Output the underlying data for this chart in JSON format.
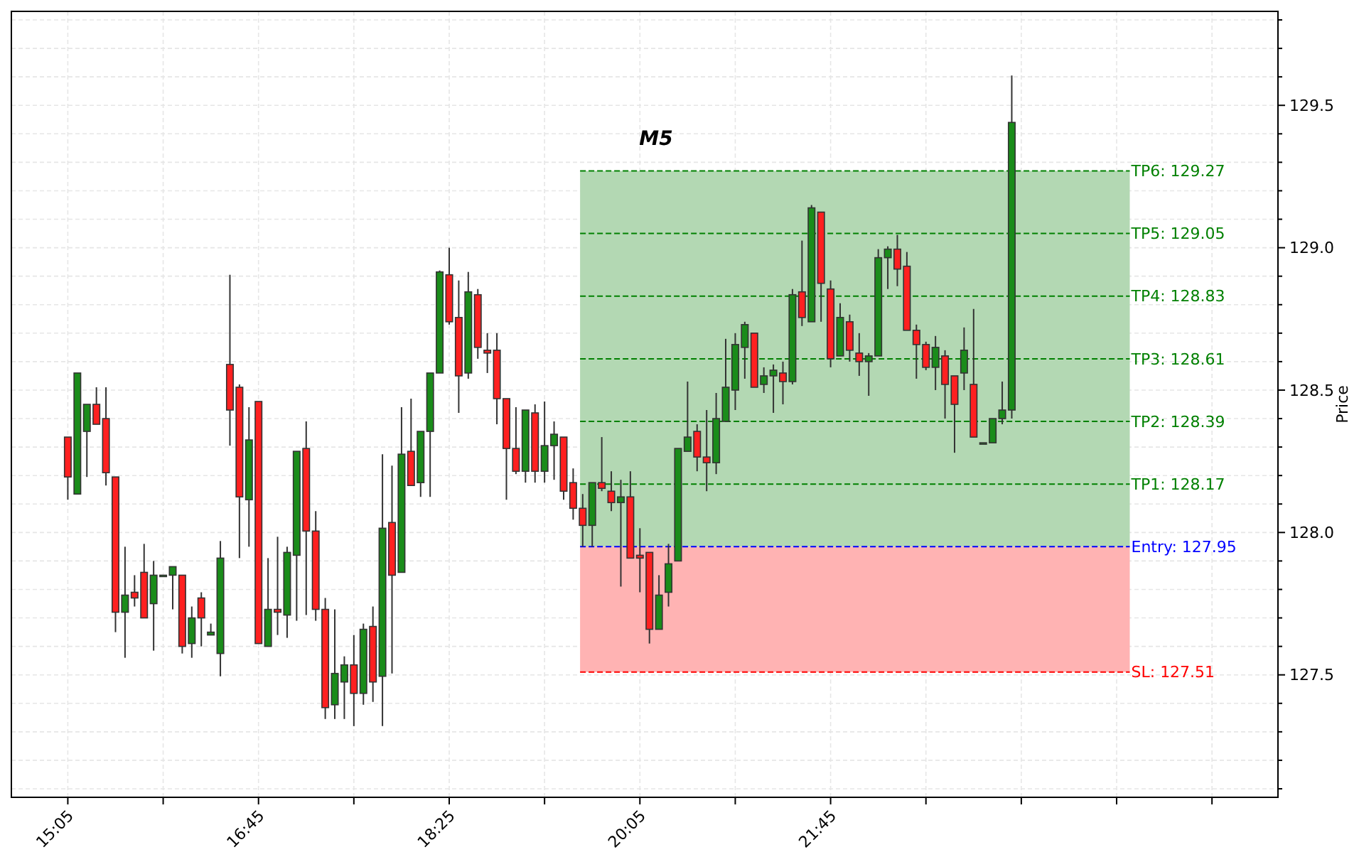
{
  "chart_data": {
    "type": "candlestick",
    "title": "M5",
    "ylabel": "Price",
    "x": [
      15.0833,
      15.1667,
      15.25,
      15.3333,
      15.4167,
      15.5,
      15.5833,
      15.6667,
      15.75,
      15.8333,
      15.9167,
      16,
      16.0833,
      16.1667,
      16.25,
      16.3333,
      16.4167,
      16.5,
      16.5833,
      16.6667,
      16.75,
      16.8333,
      16.9167,
      17,
      17.0833,
      17.1667,
      17.25,
      17.3333,
      17.4167,
      17.5,
      17.5833,
      17.6667,
      17.75,
      17.8333,
      17.9167,
      18,
      18.0833,
      18.1667,
      18.25,
      18.3333,
      18.4167,
      18.5,
      18.5833,
      18.6667,
      18.75,
      18.8333,
      18.9167,
      19,
      19.0833,
      19.1667,
      19.25,
      19.3333,
      19.4167,
      19.5,
      19.5833,
      19.6667,
      19.75,
      19.8333,
      19.9167,
      20,
      20.0833,
      20.1667,
      20.25,
      20.3333,
      20.4167,
      20.5,
      20.5833,
      20.6667,
      20.75,
      20.8333,
      20.9167,
      21,
      21.0833,
      21.1667,
      21.25,
      21.3333,
      21.4167,
      21.5,
      21.5833,
      21.6667,
      21.75,
      21.8333,
      21.9167,
      22,
      22.0833,
      22.1667,
      22.25,
      22.3333,
      22.4167,
      22.5,
      22.5833,
      22.6667,
      22.75,
      22.8333,
      22.9167,
      23,
      23.0833,
      23.1667,
      23.25,
      23.3333
    ],
    "ohlc": [
      [
        128.335,
        128.335,
        128.115,
        128.195
      ],
      [
        128.135,
        128.56,
        128.135,
        128.56
      ],
      [
        128.355,
        128.45,
        128.195,
        128.45
      ],
      [
        128.45,
        128.51,
        128.38,
        128.38
      ],
      [
        128.4,
        128.51,
        128.165,
        128.21
      ],
      [
        128.195,
        128.195,
        127.65,
        127.72
      ],
      [
        127.72,
        127.95,
        127.56,
        127.78
      ],
      [
        127.79,
        127.85,
        127.74,
        127.77
      ],
      [
        127.86,
        127.96,
        127.7,
        127.7
      ],
      [
        127.75,
        127.9,
        127.585,
        127.85
      ],
      [
        127.85,
        127.85,
        127.85,
        127.85
      ],
      [
        127.85,
        127.88,
        127.73,
        127.88
      ],
      [
        127.85,
        127.85,
        127.575,
        127.6
      ],
      [
        127.61,
        127.74,
        127.56,
        127.7
      ],
      [
        127.77,
        127.79,
        127.6,
        127.7
      ],
      [
        127.64,
        127.68,
        127.64,
        127.65
      ],
      [
        127.575,
        127.97,
        127.495,
        127.91
      ],
      [
        128.59,
        128.905,
        128.305,
        128.43
      ],
      [
        128.51,
        128.52,
        127.91,
        128.125
      ],
      [
        128.115,
        128.44,
        127.95,
        128.325
      ],
      [
        128.46,
        128.46,
        127.61,
        127.61
      ],
      [
        127.6,
        127.91,
        127.6,
        127.73
      ],
      [
        127.73,
        127.985,
        127.64,
        127.72
      ],
      [
        127.71,
        127.95,
        127.63,
        127.93
      ],
      [
        127.92,
        128.285,
        127.69,
        128.285
      ],
      [
        128.295,
        128.39,
        127.71,
        128.005
      ],
      [
        128.005,
        128.075,
        127.69,
        127.73
      ],
      [
        127.73,
        127.77,
        127.345,
        127.385
      ],
      [
        127.395,
        127.73,
        127.345,
        127.505
      ],
      [
        127.475,
        127.565,
        127.345,
        127.535
      ],
      [
        127.535,
        127.64,
        127.32,
        127.435
      ],
      [
        127.435,
        127.68,
        127.395,
        127.66
      ],
      [
        127.67,
        127.74,
        127.405,
        127.475
      ],
      [
        127.495,
        128.275,
        127.32,
        128.015
      ],
      [
        128.035,
        128.235,
        127.505,
        127.85
      ],
      [
        127.86,
        128.44,
        127.86,
        128.275
      ],
      [
        128.285,
        128.47,
        128.165,
        128.165
      ],
      [
        128.175,
        128.355,
        128.125,
        128.355
      ],
      [
        128.355,
        128.56,
        128.125,
        128.56
      ],
      [
        128.56,
        128.92,
        128.56,
        128.915
      ],
      [
        128.905,
        129,
        128.73,
        128.74
      ],
      [
        128.755,
        128.885,
        128.42,
        128.55
      ],
      [
        128.56,
        128.915,
        128.54,
        128.845
      ],
      [
        128.835,
        128.855,
        128.61,
        128.65
      ],
      [
        128.64,
        128.7,
        128.56,
        128.63
      ],
      [
        128.64,
        128.7,
        128.38,
        128.47
      ],
      [
        128.47,
        128.47,
        128.115,
        128.295
      ],
      [
        128.295,
        128.44,
        128.205,
        128.215
      ],
      [
        128.215,
        128.43,
        128.175,
        128.43
      ],
      [
        128.42,
        128.45,
        128.175,
        128.215
      ],
      [
        128.215,
        128.46,
        128.175,
        128.305
      ],
      [
        128.305,
        128.39,
        128.185,
        128.345
      ],
      [
        128.335,
        128.335,
        128.115,
        128.145
      ],
      [
        128.175,
        128.225,
        128.045,
        128.085
      ],
      [
        128.085,
        128.135,
        127.95,
        128.025
      ],
      [
        128.025,
        128.175,
        127.95,
        128.175
      ],
      [
        128.175,
        128.335,
        128.145,
        128.155
      ],
      [
        128.145,
        128.215,
        128.075,
        128.105
      ],
      [
        128.105,
        128.185,
        127.81,
        128.125
      ],
      [
        128.125,
        128.215,
        127.91,
        127.91
      ],
      [
        127.92,
        128.015,
        127.79,
        127.91
      ],
      [
        127.93,
        127.93,
        127.61,
        127.66
      ],
      [
        127.66,
        127.85,
        127.66,
        127.78
      ],
      [
        127.79,
        127.96,
        127.74,
        127.89
      ],
      [
        127.9,
        128.295,
        127.9,
        128.295
      ],
      [
        128.285,
        128.53,
        128.285,
        128.335
      ],
      [
        128.355,
        128.38,
        128.215,
        128.265
      ],
      [
        128.265,
        128.43,
        128.145,
        128.245
      ],
      [
        128.245,
        128.49,
        128.205,
        128.4
      ],
      [
        128.39,
        128.68,
        128.39,
        128.51
      ],
      [
        128.5,
        128.7,
        128.43,
        128.66
      ],
      [
        128.65,
        128.74,
        128.54,
        128.73
      ],
      [
        128.7,
        128.7,
        128.51,
        128.51
      ],
      [
        128.52,
        128.58,
        128.49,
        128.55
      ],
      [
        128.55,
        128.59,
        128.42,
        128.57
      ],
      [
        128.56,
        128.6,
        128.45,
        128.53
      ],
      [
        128.53,
        128.855,
        128.52,
        128.835
      ],
      [
        128.845,
        129.025,
        128.725,
        128.755
      ],
      [
        128.74,
        129.15,
        128.74,
        129.14
      ],
      [
        129.125,
        129.125,
        128.74,
        128.875
      ],
      [
        128.855,
        128.885,
        128.58,
        128.61
      ],
      [
        128.62,
        128.805,
        128.62,
        128.755
      ],
      [
        128.74,
        128.765,
        128.6,
        128.64
      ],
      [
        128.63,
        128.7,
        128.55,
        128.6
      ],
      [
        128.6,
        128.63,
        128.48,
        128.62
      ],
      [
        128.62,
        128.995,
        128.62,
        128.965
      ],
      [
        128.965,
        129.005,
        128.855,
        128.995
      ],
      [
        128.995,
        129.045,
        128.865,
        128.925
      ],
      [
        128.935,
        128.985,
        128.71,
        128.71
      ],
      [
        128.71,
        128.73,
        128.54,
        128.66
      ],
      [
        128.66,
        128.67,
        128.57,
        128.58
      ],
      [
        128.58,
        128.69,
        128.5,
        128.65
      ],
      [
        128.62,
        128.64,
        128.4,
        128.52
      ],
      [
        128.55,
        128.55,
        128.28,
        128.45
      ],
      [
        128.56,
        128.72,
        128.5,
        128.64
      ],
      [
        128.52,
        128.785,
        128.335,
        128.335
      ],
      [
        128.315,
        128.315,
        128.315,
        128.315
      ],
      [
        128.315,
        128.4,
        128.315,
        128.4
      ],
      [
        128.4,
        128.53,
        128.38,
        128.43
      ],
      [
        128.43,
        129.605,
        128.4,
        129.44
      ]
    ],
    "xlim": [
      14.59,
      25.66
    ],
    "xticks": [
      {
        "value": 15.0833,
        "label": "15:05"
      },
      {
        "value": 15.9167,
        "label": null
      },
      {
        "value": 16.75,
        "label": "16:45"
      },
      {
        "value": 17.5833,
        "label": null
      },
      {
        "value": 18.4167,
        "label": "18:25"
      },
      {
        "value": 19.25,
        "label": null
      },
      {
        "value": 20.0833,
        "label": "20:05"
      },
      {
        "value": 20.9167,
        "label": null
      },
      {
        "value": 21.75,
        "label": "21:45"
      },
      {
        "value": 22.5833,
        "label": null
      },
      {
        "value": 23.4167,
        "label": null
      },
      {
        "value": 24.25,
        "label": null
      },
      {
        "value": 25.0833,
        "label": null
      }
    ],
    "ylim": [
      127.07,
      129.83
    ],
    "yticks": [
      {
        "value": 127.1,
        "label": null
      },
      {
        "value": 127.2,
        "label": null
      },
      {
        "value": 127.3,
        "label": null
      },
      {
        "value": 127.4,
        "label": null
      },
      {
        "value": 127.5,
        "label": "127.5"
      },
      {
        "value": 127.6,
        "label": null
      },
      {
        "value": 127.7,
        "label": null
      },
      {
        "value": 127.8,
        "label": null
      },
      {
        "value": 127.9,
        "label": null
      },
      {
        "value": 128.0,
        "label": "128.0"
      },
      {
        "value": 128.1,
        "label": null
      },
      {
        "value": 128.2,
        "label": null
      },
      {
        "value": 128.3,
        "label": null
      },
      {
        "value": 128.4,
        "label": null
      },
      {
        "value": 128.5,
        "label": "128.5"
      },
      {
        "value": 128.6,
        "label": null
      },
      {
        "value": 128.7,
        "label": null
      },
      {
        "value": 128.8,
        "label": null
      },
      {
        "value": 128.9,
        "label": null
      },
      {
        "value": 129.0,
        "label": "129.0"
      },
      {
        "value": 129.1,
        "label": null
      },
      {
        "value": 129.2,
        "label": null
      },
      {
        "value": 129.3,
        "label": null
      },
      {
        "value": 129.4,
        "label": null
      },
      {
        "value": 129.5,
        "label": "129.5"
      },
      {
        "value": 129.6,
        "label": null
      },
      {
        "value": 129.7,
        "label": null
      },
      {
        "value": 129.8,
        "label": null
      }
    ],
    "grid": true,
    "bands": [
      {
        "axis": "y",
        "from": 127.95,
        "to": 129.27,
        "color": "#b3d8b3"
      },
      {
        "axis": "y",
        "from": 127.51,
        "to": 127.95,
        "color": "#ffb3b3"
      }
    ],
    "ref_lines": [
      {
        "axis": "y",
        "value": 129.27,
        "label": "TP6: 129.27",
        "color": "#008000",
        "line_style": "dashed"
      },
      {
        "axis": "y",
        "value": 129.05,
        "label": "TP5: 129.05",
        "color": "#008000",
        "line_style": "dashed"
      },
      {
        "axis": "y",
        "value": 128.83,
        "label": "TP4: 128.83",
        "color": "#008000",
        "line_style": "dashed"
      },
      {
        "axis": "y",
        "value": 128.61,
        "label": "TP3: 128.61",
        "color": "#008000",
        "line_style": "dashed"
      },
      {
        "axis": "y",
        "value": 128.39,
        "label": "TP2: 128.39",
        "color": "#008000",
        "line_style": "dashed"
      },
      {
        "axis": "y",
        "value": 128.17,
        "label": "TP1: 128.17",
        "color": "#008000",
        "line_style": "dashed"
      },
      {
        "axis": "y",
        "value": 127.95,
        "label": "Entry: 127.95",
        "color": "#0000ff",
        "line_style": "dashed"
      },
      {
        "axis": "y",
        "value": 127.51,
        "label": "SL: 127.51",
        "color": "#ff0000",
        "line_style": "dashed"
      }
    ]
  }
}
